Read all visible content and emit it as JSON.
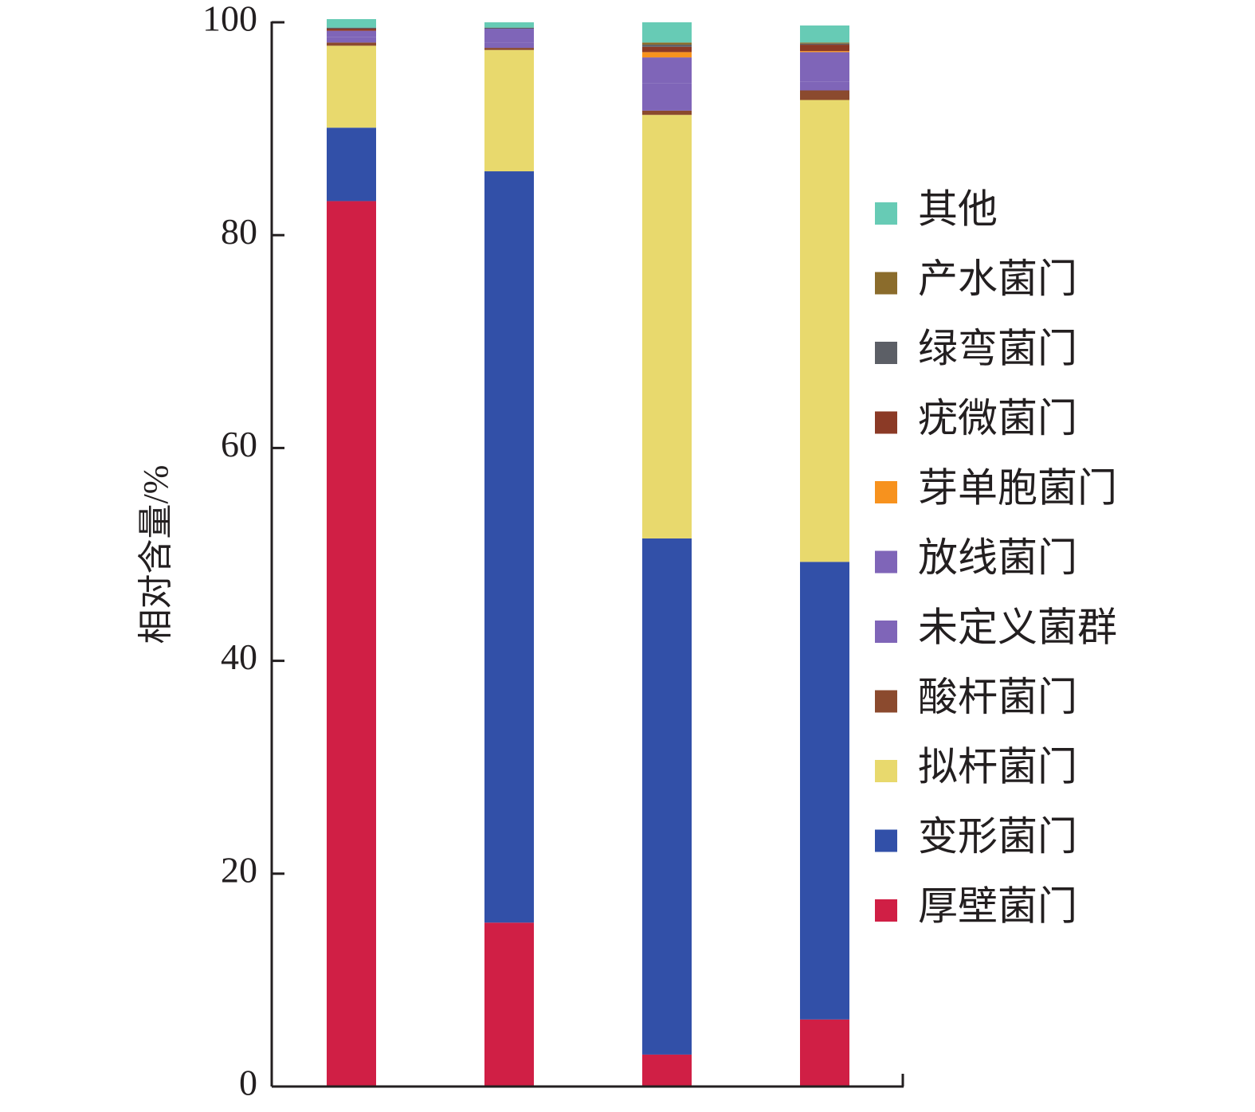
{
  "chart_data": {
    "type": "bar",
    "stacked": true,
    "title": "",
    "xlabel": "",
    "ylabel": "相对含量/%",
    "ylim": [
      0,
      100
    ],
    "yticks": [
      "0",
      "20",
      "40",
      "60",
      "80",
      "100"
    ],
    "grid": false,
    "legend_position": "right",
    "categories": [
      "",
      "",
      "",
      ""
    ],
    "series": [
      {
        "name": "厚壁菌门",
        "color": "#d01f45",
        "values": [
          83.2,
          15.4,
          3.0,
          6.3
        ]
      },
      {
        "name": "变形菌门",
        "color": "#3250a8",
        "values": [
          6.9,
          70.6,
          48.5,
          43.0
        ]
      },
      {
        "name": "拟杆菌门",
        "color": "#e8d96d",
        "values": [
          7.7,
          11.4,
          39.8,
          43.4
        ]
      },
      {
        "name": "酸杆菌门",
        "color": "#8b4a2e",
        "values": [
          0.3,
          0.2,
          0.4,
          0.9
        ]
      },
      {
        "name": "未定义菌群",
        "color": "#7f65b8",
        "values": [
          0.5,
          0.5,
          2.6,
          0.8
        ]
      },
      {
        "name": "放线菌门",
        "color": "#7f65b8",
        "values": [
          0.6,
          1.3,
          2.4,
          2.8
        ]
      },
      {
        "name": "芽单胞菌门",
        "color": "#f7921e",
        "values": [
          0.0,
          0.0,
          0.5,
          0.1
        ]
      },
      {
        "name": "疣微菌门",
        "color": "#8b3a26",
        "values": [
          0.2,
          0.0,
          0.5,
          0.6
        ]
      },
      {
        "name": "绿弯菌门",
        "color": "#5c5f66",
        "values": [
          0.1,
          0.1,
          0.2,
          0.1
        ]
      },
      {
        "name": "产水菌门",
        "color": "#8b6c2c",
        "values": [
          0.0,
          0.0,
          0.2,
          0.1
        ]
      },
      {
        "name": "其他",
        "color": "#67cbb5",
        "values": [
          0.8,
          0.5,
          1.9,
          1.6
        ]
      }
    ]
  }
}
